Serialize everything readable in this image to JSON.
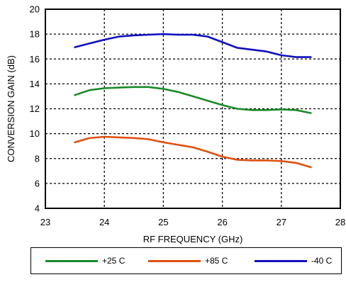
{
  "chart_data": {
    "type": "line",
    "title": "",
    "xlabel": "RF FREQUENCY (GHz)",
    "ylabel": "CONVERSION GAIN (dB)",
    "xlim": [
      23,
      28
    ],
    "ylim": [
      4,
      20
    ],
    "xticks": [
      "23",
      "24",
      "25",
      "26",
      "27",
      "28"
    ],
    "yticks": [
      "4",
      "6",
      "8",
      "10",
      "12",
      "14",
      "16",
      "18",
      "20"
    ],
    "grid": true,
    "legend_position": "bottom",
    "series": [
      {
        "name": "+25 C",
        "color": "#1a8a2a",
        "x": [
          23.5,
          23.75,
          24.0,
          24.25,
          24.5,
          24.75,
          25.0,
          25.25,
          25.5,
          25.75,
          26.0,
          26.25,
          26.5,
          26.75,
          27.0,
          27.25,
          27.5
        ],
        "y": [
          13.1,
          13.5,
          13.65,
          13.7,
          13.75,
          13.75,
          13.6,
          13.35,
          13.0,
          12.65,
          12.3,
          12.0,
          11.9,
          11.9,
          11.95,
          11.9,
          11.65
        ]
      },
      {
        "name": "+85 C",
        "color": "#e05010",
        "x": [
          23.5,
          23.75,
          24.0,
          24.25,
          24.5,
          24.75,
          25.0,
          25.25,
          25.5,
          25.75,
          26.0,
          26.25,
          26.5,
          26.75,
          27.0,
          27.25,
          27.5
        ],
        "y": [
          9.3,
          9.65,
          9.75,
          9.7,
          9.65,
          9.55,
          9.3,
          9.1,
          8.9,
          8.55,
          8.15,
          7.9,
          7.85,
          7.85,
          7.8,
          7.65,
          7.3
        ]
      },
      {
        "name": "-40 C",
        "color": "#1010c0",
        "x": [
          23.5,
          23.75,
          24.0,
          24.25,
          24.5,
          24.75,
          25.0,
          25.25,
          25.5,
          25.75,
          26.0,
          26.25,
          26.5,
          26.75,
          27.0,
          27.25,
          27.5
        ],
        "y": [
          16.95,
          17.25,
          17.55,
          17.8,
          17.9,
          17.95,
          18.0,
          17.95,
          17.95,
          17.8,
          17.35,
          16.9,
          16.75,
          16.6,
          16.3,
          16.15,
          16.15
        ]
      }
    ]
  }
}
